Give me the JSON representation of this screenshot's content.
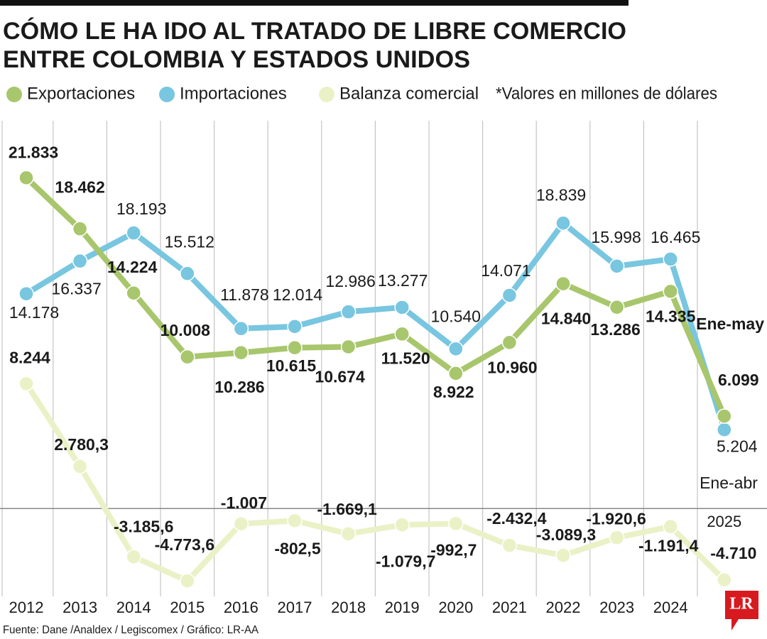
{
  "chart_data": {
    "type": "line",
    "title": [
      "CÓMO LE HA IDO AL TRATADO DE LIBRE COMERCIO",
      "ENTRE COLOMBIA Y ESTADOS UNIDOS"
    ],
    "note": "*Valores en millones de dólares",
    "source": "Fuente: Dane /Analdex / Legiscomex / Gráfico: LR-AA",
    "logo": "LR",
    "annotations": [
      "Ene-may",
      "Ene-abr"
    ],
    "categories": [
      "2012",
      "2013",
      "2014",
      "2015",
      "2016",
      "2017",
      "2018",
      "2019",
      "2020",
      "2021",
      "2022",
      "2023",
      "2024",
      "2025"
    ],
    "ylim": [
      -5800,
      25600
    ],
    "series": [
      {
        "name": "Exportaciones",
        "color": "#a8c66c",
        "values": [
          21833,
          18462,
          14224,
          10008,
          10286,
          10615,
          10674,
          11520,
          8922,
          10960,
          14840,
          13286,
          14335,
          6099
        ],
        "value_labels": [
          "21.833",
          "18.462",
          "14.224",
          "10.008",
          "10.286",
          "10.615",
          "10.674",
          "11.520",
          "8.922",
          "10.960",
          "14.840",
          "13.286",
          "14.335",
          "6.099"
        ]
      },
      {
        "name": "Importaciones",
        "color": "#78c6e0",
        "values": [
          14178,
          16337,
          18193,
          15512,
          11878,
          12014,
          12986,
          13277,
          10540,
          14071,
          18839,
          15998,
          16465,
          5204
        ],
        "value_labels": [
          "14.178",
          "16.337",
          "18.193",
          "15.512",
          "11.878",
          "12.014",
          "12.986",
          "13.277",
          "10.540",
          "14.071",
          "18.839",
          "15.998",
          "16.465",
          "5.204"
        ]
      },
      {
        "name": "Balanza comercial",
        "color": "#ebf1c6",
        "values": [
          8244,
          2780.3,
          -3185.6,
          -4773.6,
          -1007,
          -802.5,
          -1669.1,
          -1079.7,
          -992.7,
          -2432.4,
          -3089.3,
          -1920.6,
          -1191.4,
          -4710
        ],
        "value_labels": [
          "8.244",
          "2.780,3",
          "-3.185,6",
          "-4.773,6",
          "-1.007",
          "-802,5",
          "-1.669,1",
          "-1.079,7",
          "-992,7",
          "-2.432,4",
          "-3.089,3",
          "-1.920,6",
          "-1.191,4",
          "-4.710"
        ]
      }
    ]
  }
}
